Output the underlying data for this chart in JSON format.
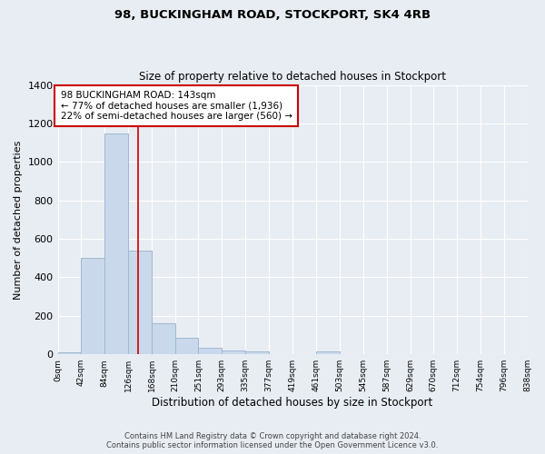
{
  "title1": "98, BUCKINGHAM ROAD, STOCKPORT, SK4 4RB",
  "title2": "Size of property relative to detached houses in Stockport",
  "xlabel": "Distribution of detached houses by size in Stockport",
  "ylabel": "Number of detached properties",
  "bin_edges": [
    0,
    42,
    84,
    126,
    168,
    210,
    251,
    293,
    335,
    377,
    419,
    461,
    503,
    545,
    587,
    629,
    670,
    712,
    754,
    796,
    838
  ],
  "bar_heights": [
    10,
    500,
    1150,
    540,
    160,
    85,
    35,
    22,
    15,
    0,
    0,
    15,
    0,
    0,
    0,
    0,
    0,
    0,
    0,
    0
  ],
  "bar_color": "#c9d9eb",
  "bar_edgecolor": "#a0b8d0",
  "vline_x": 143,
  "vline_color": "#cc0000",
  "annotation_line1": "98 BUCKINGHAM ROAD: 143sqm",
  "annotation_line2": "← 77% of detached houses are smaller (1,936)",
  "annotation_line3": "22% of semi-detached houses are larger (560) →",
  "annotation_box_edgecolor": "#cc0000",
  "annotation_box_facecolor": "#ffffff",
  "ylim": [
    0,
    1400
  ],
  "yticks": [
    0,
    200,
    400,
    600,
    800,
    1000,
    1200,
    1400
  ],
  "background_color": "#e8edf4",
  "grid_color": "#ffffff",
  "footer1": "Contains HM Land Registry data © Crown copyright and database right 2024.",
  "footer2": "Contains public sector information licensed under the Open Government Licence v3.0."
}
